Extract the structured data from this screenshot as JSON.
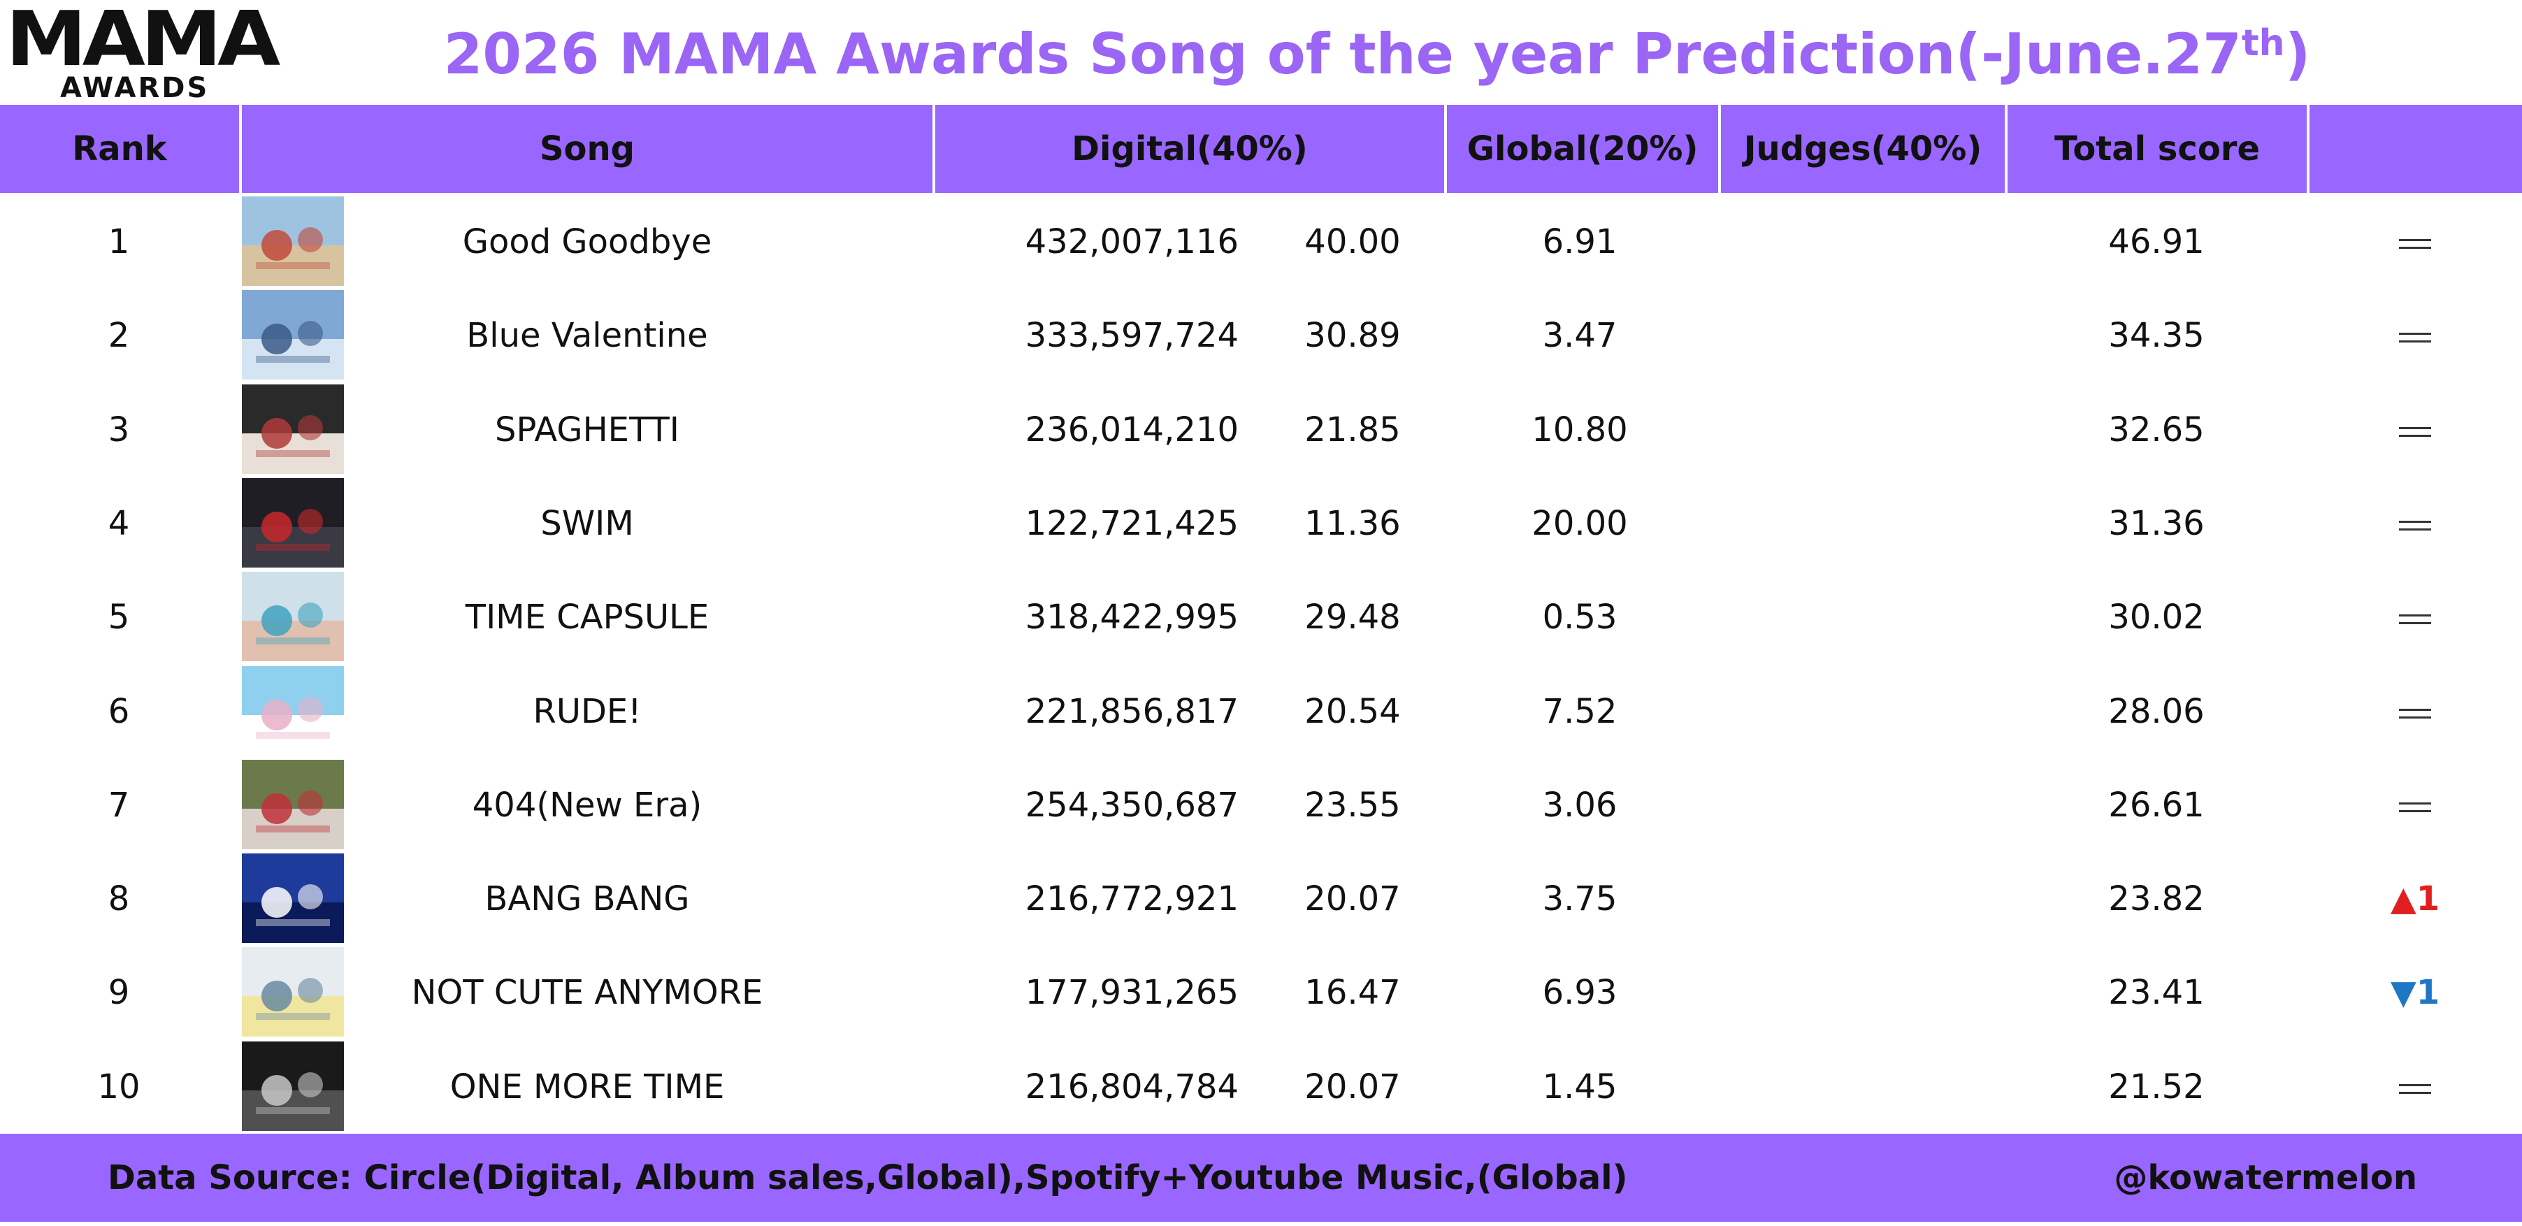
{
  "logo": {
    "top": "MAMA",
    "bottom": "AWARDS"
  },
  "title": {
    "main": "2026 MAMA Awards Song of the year Prediction(-June.27",
    "sup": "th",
    "end": ")"
  },
  "columns": {
    "rank": "Rank",
    "song": "Song",
    "digital": "Digital(40%)",
    "global": "Global(20%)",
    "judges": "Judges(40%)",
    "total": "Total score",
    "change": ""
  },
  "rows": [
    {
      "rank": "1",
      "song": "Good Goodbye",
      "digital": "432,007,116",
      "digital_score": "40.00",
      "global": "6.91",
      "judges": "",
      "total": "46.91",
      "change": {
        "type": "same",
        "icon": "equals-icon"
      }
    },
    {
      "rank": "2",
      "song": "Blue Valentine",
      "digital": "333,597,724",
      "digital_score": "30.89",
      "global": "3.47",
      "judges": "",
      "total": "34.35",
      "change": {
        "type": "same",
        "icon": "equals-icon"
      }
    },
    {
      "rank": "3",
      "song": "SPAGHETTI",
      "digital": "236,014,210",
      "digital_score": "21.85",
      "global": "10.80",
      "judges": "",
      "total": "32.65",
      "change": {
        "type": "same",
        "icon": "equals-icon"
      }
    },
    {
      "rank": "4",
      "song": "SWIM",
      "digital": "122,721,425",
      "digital_score": "11.36",
      "global": "20.00",
      "judges": "",
      "total": "31.36",
      "change": {
        "type": "same",
        "icon": "equals-icon"
      }
    },
    {
      "rank": "5",
      "song": "TIME CAPSULE",
      "digital": "318,422,995",
      "digital_score": "29.48",
      "global": "0.53",
      "judges": "",
      "total": "30.02",
      "change": {
        "type": "same",
        "icon": "equals-icon"
      }
    },
    {
      "rank": "6",
      "song": "RUDE!",
      "digital": "221,856,817",
      "digital_score": "20.54",
      "global": "7.52",
      "judges": "",
      "total": "28.06",
      "change": {
        "type": "same",
        "icon": "equals-icon"
      }
    },
    {
      "rank": "7",
      "song": "404(New Era)",
      "digital": "254,350,687",
      "digital_score": "23.55",
      "global": "3.06",
      "judges": "",
      "total": "26.61",
      "change": {
        "type": "same",
        "icon": "equals-icon"
      }
    },
    {
      "rank": "8",
      "song": "BANG BANG",
      "digital": "216,772,921",
      "digital_score": "20.07",
      "global": "3.75",
      "judges": "",
      "total": "23.82",
      "change": {
        "type": "up",
        "icon": "triangle-up-icon",
        "glyph": "▲",
        "value": "1"
      }
    },
    {
      "rank": "9",
      "song": "NOT CUTE ANYMORE",
      "digital": "177,931,265",
      "digital_score": "16.47",
      "global": "6.93",
      "judges": "",
      "total": "23.41",
      "change": {
        "type": "down",
        "icon": "triangle-down-icon",
        "glyph": "▼",
        "value": "1"
      }
    },
    {
      "rank": "10",
      "song": "ONE MORE TIME",
      "digital": "216,804,784",
      "digital_score": "20.07",
      "global": "1.45",
      "judges": "",
      "total": "21.52",
      "change": {
        "type": "same",
        "icon": "equals-icon"
      }
    }
  ],
  "thumbnails": [
    {
      "icon": "album-cover-icon",
      "colors": [
        "#9ec3e0",
        "#d8c3a0",
        "#c24a3a"
      ]
    },
    {
      "icon": "album-cover-icon",
      "colors": [
        "#7fa8d6",
        "#d5e4f2",
        "#3a5a8a"
      ]
    },
    {
      "icon": "album-cover-icon",
      "colors": [
        "#2a2a2a",
        "#e8e0d8",
        "#b03a3a"
      ]
    },
    {
      "icon": "album-cover-icon",
      "colors": [
        "#1e1e24",
        "#3a3a44",
        "#c8282c"
      ]
    },
    {
      "icon": "album-cover-icon",
      "colors": [
        "#cfe0ea",
        "#e2c0b0",
        "#3fa2c0"
      ]
    },
    {
      "icon": "album-cover-icon",
      "colors": [
        "#8fd0ee",
        "#ffffff",
        "#e8b0c8"
      ]
    },
    {
      "icon": "album-cover-icon",
      "colors": [
        "#6b7a4a",
        "#d8d0c8",
        "#c0303a"
      ]
    },
    {
      "icon": "album-cover-icon",
      "colors": [
        "#1e3a9a",
        "#0a1a5a",
        "#ffffff"
      ]
    },
    {
      "icon": "album-cover-icon",
      "colors": [
        "#e6ecef",
        "#f0e6a0",
        "#6a8aa0"
      ]
    },
    {
      "icon": "album-cover-icon",
      "colors": [
        "#1a1a1a",
        "#505050",
        "#c8c8c8"
      ]
    }
  ],
  "footer": {
    "source": "Data Source: Circle(Digital, Album sales,Global),Spotify+Youtube Music,(Global)",
    "handle": "@kowatermelon"
  }
}
